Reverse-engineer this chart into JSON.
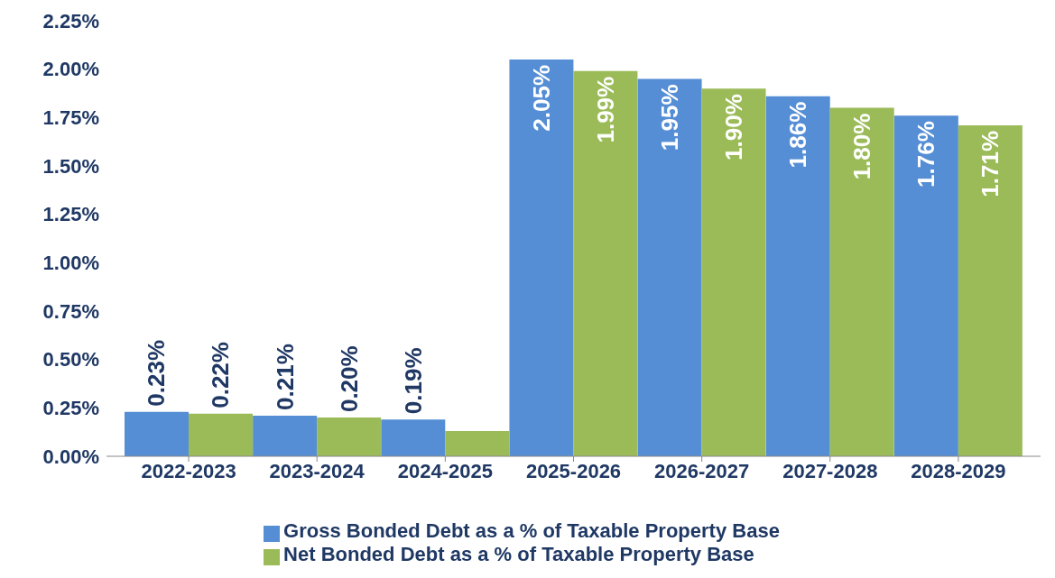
{
  "chart_data": {
    "type": "bar",
    "categories": [
      "2022-2023",
      "2023-2024",
      "2024-2025",
      "2025-2026",
      "2026-2027",
      "2027-2028",
      "2028-2029"
    ],
    "series": [
      {
        "name": "Gross Bonded Debt as a % of Taxable Property Base",
        "color": "#558ed5",
        "values": [
          0.23,
          0.21,
          0.19,
          2.05,
          1.95,
          1.86,
          1.76
        ],
        "value_labels": [
          "0.23%",
          "0.21%",
          "0.19%",
          "2.05%",
          "1.95%",
          "1.86%",
          "1.76%"
        ]
      },
      {
        "name": "Net Bonded Debt as a % of Taxable Property Base",
        "color": "#9bbb59",
        "values": [
          0.22,
          0.2,
          0.13,
          1.99,
          1.9,
          1.8,
          1.71
        ],
        "value_labels": [
          "0.22%",
          "0.20%",
          null,
          "1.99%",
          "1.90%",
          "1.80%",
          "1.71%"
        ]
      }
    ],
    "ylim": [
      0,
      2.25
    ],
    "yticks": [
      {
        "value": 0,
        "label": "0.00%"
      },
      {
        "value": 0.25,
        "label": "0.25%"
      },
      {
        "value": 0.5,
        "label": "0.50%"
      },
      {
        "value": 0.75,
        "label": "0.75%"
      },
      {
        "value": 1,
        "label": "1.00%"
      },
      {
        "value": 1.25,
        "label": "1.25%"
      },
      {
        "value": 1.5,
        "label": "1.50%"
      },
      {
        "value": 1.75,
        "label": "1.75%"
      },
      {
        "value": 2,
        "label": "2.00%"
      },
      {
        "value": 2.25,
        "label": "2.25%"
      }
    ],
    "grid": false,
    "legend": "bottom"
  }
}
